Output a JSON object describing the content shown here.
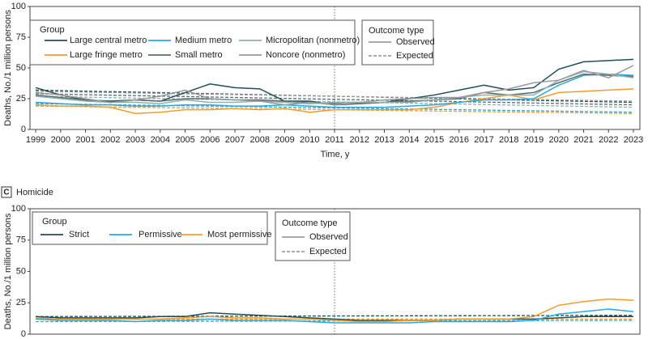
{
  "chart_data": [
    {
      "type": "line",
      "y_label": "Deaths, No./1 million persons",
      "x_label": "Time, y",
      "legend_title": "Group",
      "outcome_legend": {
        "title": "Outcome type",
        "observed": "Observed",
        "expected": "Expected"
      },
      "x": [
        1999,
        2000,
        2001,
        2002,
        2003,
        2004,
        2005,
        2006,
        2007,
        2008,
        2009,
        2010,
        2011,
        2012,
        2013,
        2014,
        2015,
        2016,
        2017,
        2018,
        2019,
        2020,
        2021,
        2022,
        2023
      ],
      "xticks": [
        1999,
        2000,
        2001,
        2002,
        2003,
        2004,
        2005,
        2006,
        2007,
        2008,
        2009,
        2010,
        2011,
        2012,
        2013,
        2014,
        2015,
        2016,
        2017,
        2018,
        2019,
        2020,
        2021,
        2022,
        2023
      ],
      "xlim": [
        1998.77,
        2023.26
      ],
      "ylim": [
        0,
        100
      ],
      "yticks": [
        0,
        25,
        50,
        75,
        100
      ],
      "vline": 2011,
      "series": [
        {
          "name": "Large central metro",
          "color": "#1f4e5a",
          "values": [
            34,
            28,
            24,
            23,
            24,
            23,
            30,
            37,
            34,
            33,
            23,
            23,
            20,
            21,
            22,
            25,
            28,
            32,
            36,
            32,
            34,
            49,
            55,
            56,
            57
          ],
          "expected": {
            "x": [
              1999,
              2023
            ],
            "values": [
              32,
              22
            ]
          }
        },
        {
          "name": "Large fringe metro",
          "color": "#f39c2b",
          "values": [
            20,
            19,
            19,
            18,
            13,
            14,
            16,
            16,
            17,
            16,
            17,
            14,
            16,
            16,
            16,
            16,
            18,
            22,
            25,
            28,
            24,
            30,
            31,
            32,
            33
          ],
          "expected": {
            "x": [
              1999,
              2023
            ],
            "values": [
              19,
              13
            ]
          }
        },
        {
          "name": "Medium metro",
          "color": "#29a8e0",
          "values": [
            22,
            21,
            20,
            20,
            19,
            19,
            20,
            20,
            19,
            19,
            20,
            19,
            18,
            18,
            18,
            19,
            20,
            22,
            24,
            24,
            25,
            36,
            44,
            45,
            44
          ],
          "expected": {
            "x": [
              1999,
              2023
            ],
            "values": [
              21,
              14
            ]
          }
        },
        {
          "name": "Small metro",
          "color": "#5a6b6b",
          "values": [
            28,
            26,
            24,
            22,
            24,
            23,
            25,
            25,
            24,
            24,
            23,
            22,
            21,
            21,
            22,
            23,
            24,
            25,
            30,
            28,
            30,
            38,
            45,
            44,
            43
          ],
          "expected": {
            "x": [
              1999,
              2023
            ],
            "values": [
              29,
              20
            ]
          }
        },
        {
          "name": "Micropolitan (nonmetro)",
          "color": "#8fb0b0",
          "values": [
            27,
            25,
            23,
            22,
            22,
            21,
            24,
            22,
            22,
            23,
            22,
            21,
            22,
            22,
            22,
            22,
            24,
            26,
            28,
            28,
            28,
            40,
            47,
            45,
            42
          ],
          "expected": {
            "x": [
              1999,
              2023
            ],
            "values": [
              27,
              18
            ]
          }
        },
        {
          "name": "Noncore (nonmetro)",
          "color": "#9a9a9a",
          "values": [
            30,
            28,
            25,
            22,
            24,
            27,
            32,
            25,
            24,
            23,
            20,
            22,
            20,
            22,
            24,
            25,
            26,
            26,
            30,
            33,
            38,
            40,
            48,
            42,
            52
          ],
          "expected": {
            "x": [
              1999,
              2023
            ],
            "values": [
              31,
              23
            ]
          }
        }
      ]
    },
    {
      "type": "line",
      "panel_letter": "C",
      "title": "Homicide",
      "y_label": "Deaths, No./1 million persons",
      "legend_title": "Group",
      "outcome_legend": {
        "title": "Outcome type",
        "observed": "Observed",
        "expected": "Expected"
      },
      "x": [
        1999,
        2000,
        2001,
        2002,
        2003,
        2004,
        2005,
        2006,
        2007,
        2008,
        2009,
        2010,
        2011,
        2012,
        2013,
        2014,
        2015,
        2016,
        2017,
        2018,
        2019,
        2020,
        2021,
        2022,
        2023
      ],
      "xlim": [
        1998.77,
        2023.26
      ],
      "ylim": [
        0,
        100
      ],
      "yticks": [
        0,
        25,
        50,
        75,
        100
      ],
      "vline": 2011,
      "series": [
        {
          "name": "Strict",
          "color": "#1f4e5a",
          "values": [
            14,
            13,
            13,
            13,
            13,
            14,
            14,
            17,
            16,
            15,
            14,
            13,
            12,
            11,
            11,
            11,
            11,
            12,
            12,
            12,
            12,
            13,
            14,
            14,
            14
          ],
          "expected": {
            "x": [
              1999,
              2023
            ],
            "values": [
              14,
              15
            ]
          }
        },
        {
          "name": "Permissive",
          "color": "#29a8e0",
          "values": [
            12,
            11,
            11,
            11,
            10,
            11,
            11,
            12,
            11,
            11,
            11,
            10,
            9,
            9,
            9,
            9,
            10,
            10,
            10,
            10,
            11,
            16,
            18,
            20,
            18
          ],
          "expected": {
            "x": [
              1999,
              2023
            ],
            "values": [
              10,
              11
            ]
          }
        },
        {
          "name": "Most permissive",
          "color": "#f39c2b",
          "values": [
            13,
            12,
            12,
            12,
            12,
            12,
            13,
            14,
            13,
            13,
            12,
            12,
            11,
            10,
            10,
            11,
            11,
            12,
            12,
            12,
            14,
            23,
            26,
            28,
            27
          ],
          "expected": {
            "x": [
              1999,
              2023
            ],
            "values": [
              12,
              12
            ]
          }
        }
      ]
    }
  ]
}
